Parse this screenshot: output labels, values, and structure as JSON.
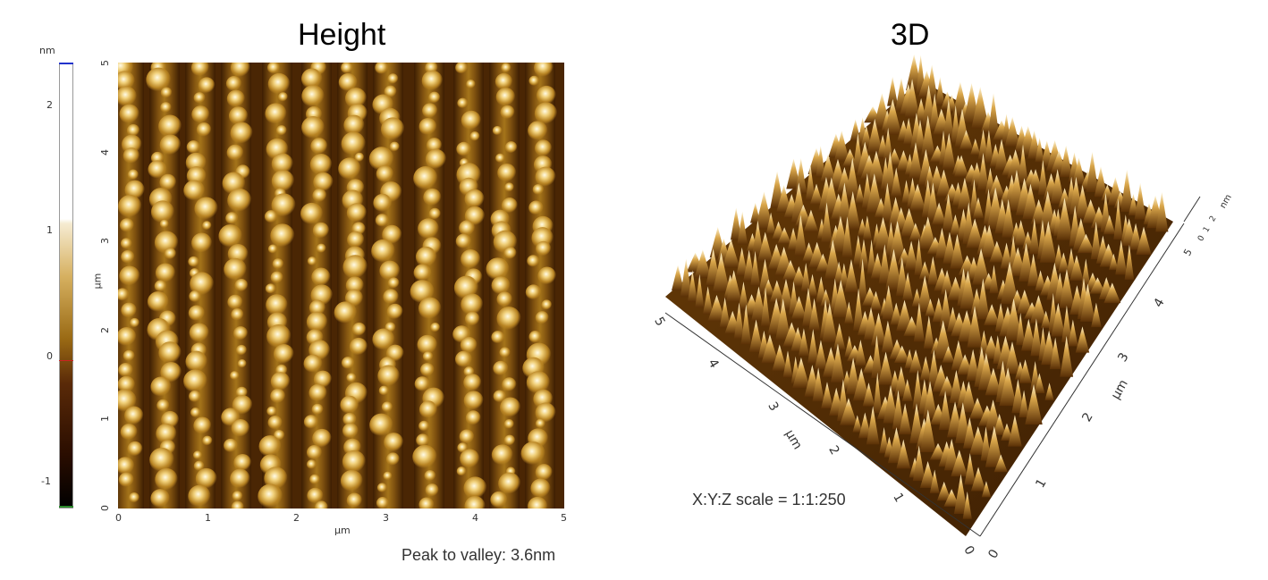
{
  "panels": {
    "height": {
      "title": "Height",
      "colorbar": {
        "unit": "nm",
        "ticks": [
          "2",
          "1",
          "0",
          "-1"
        ],
        "range_nm": [
          -1.2,
          2.4
        ]
      },
      "x_axis": {
        "unit": "µm",
        "ticks": [
          "0",
          "1",
          "2",
          "3",
          "4",
          "5"
        ]
      },
      "y_axis": {
        "unit": "µm",
        "ticks": [
          "0",
          "1",
          "2",
          "3",
          "4",
          "5"
        ]
      },
      "peak_to_valley_label": "Peak to valley: 3.6nm"
    },
    "three_d": {
      "title": "3D",
      "left_axis": {
        "unit": "µm",
        "ticks": [
          "0",
          "1",
          "2",
          "3",
          "4",
          "5"
        ]
      },
      "right_axis": {
        "unit": "µm",
        "ticks": [
          "0",
          "1",
          "2",
          "3",
          "4",
          "5"
        ]
      },
      "z_axis": {
        "unit": "nm",
        "ticks": [
          "0",
          "1",
          "2"
        ]
      },
      "scale_label": "X:Y:Z scale = 1:1:250"
    }
  },
  "colors": {
    "afm_dark": "#2a1500",
    "afm_mid": "#9a6a14",
    "afm_light": "#f4e2a8",
    "colorbar_top_line": "#2233cc",
    "colorbar_zero_line": "#cc2222"
  }
}
